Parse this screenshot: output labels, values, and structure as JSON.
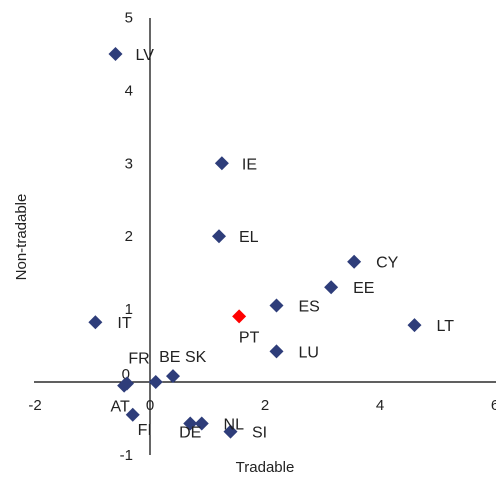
{
  "chart_data": {
    "type": "scatter",
    "title": "",
    "xlabel": "Tradable",
    "ylabel": "Non-tradable",
    "xlim": [
      -2,
      6
    ],
    "ylim": [
      -1,
      5
    ],
    "x_ticks": [
      -2,
      0,
      2,
      4,
      6
    ],
    "y_ticks": [
      -1,
      0,
      1,
      2,
      3,
      4,
      5
    ],
    "x_tick_labels": [
      "-2",
      "0",
      "2",
      "4",
      "6"
    ],
    "y_tick_labels": [
      "-1",
      "0",
      "1",
      "2",
      "3",
      "4",
      "5"
    ],
    "grid": false,
    "legend": "none",
    "colors": {
      "default": "#2e3d7a",
      "highlight": "#ff0000"
    },
    "points": [
      {
        "label": "LV",
        "x": -0.6,
        "y": 4.5
      },
      {
        "label": "IE",
        "x": 1.25,
        "y": 3.0
      },
      {
        "label": "EL",
        "x": 1.2,
        "y": 2.0
      },
      {
        "label": "CY",
        "x": 3.55,
        "y": 1.65
      },
      {
        "label": "EE",
        "x": 3.15,
        "y": 1.3
      },
      {
        "label": "ES",
        "x": 2.2,
        "y": 1.05
      },
      {
        "label": "PT",
        "x": 1.55,
        "y": 0.9,
        "highlight": true
      },
      {
        "label": "LT",
        "x": 4.6,
        "y": 0.78
      },
      {
        "label": "IT",
        "x": -0.95,
        "y": 0.82
      },
      {
        "label": "LU",
        "x": 2.2,
        "y": 0.42
      },
      {
        "label": "SK",
        "x": 0.4,
        "y": 0.08
      },
      {
        "label": "BE",
        "x": 0.1,
        "y": 0.0
      },
      {
        "label": "FR",
        "x": -0.4,
        "y": -0.02
      },
      {
        "label": "AT",
        "x": -0.45,
        "y": -0.05
      },
      {
        "label": "FI",
        "x": -0.3,
        "y": -0.45
      },
      {
        "label": "DE",
        "x": 0.7,
        "y": -0.57
      },
      {
        "label": "NL",
        "x": 0.9,
        "y": -0.57
      },
      {
        "label": "SI",
        "x": 1.4,
        "y": -0.68
      }
    ]
  }
}
